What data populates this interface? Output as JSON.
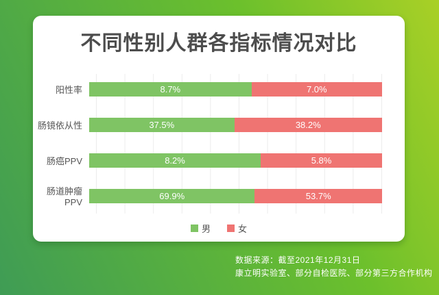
{
  "chart_data": {
    "type": "bar",
    "subtype": "horizontal-stacked-percent",
    "title": "不同性别人群各指标情况对比",
    "categories": [
      "阳性率",
      "肠镜依从性",
      "肠癌PPV",
      "肠道肿瘤PPV"
    ],
    "series": [
      {
        "name": "男",
        "color": "#7fc464",
        "values": [
          8.7,
          37.5,
          8.2,
          69.9
        ],
        "labels": [
          "8.7%",
          "37.5%",
          "8.2%",
          "69.9%"
        ]
      },
      {
        "name": "女",
        "color": "#ef7472",
        "values": [
          7.0,
          38.2,
          5.8,
          53.7
        ],
        "labels": [
          "7.0%",
          "38.2%",
          "5.8%",
          "53.7%"
        ]
      }
    ],
    "legend_position": "bottom",
    "grid": "vertical-lines-every-10-percent",
    "bar_label_color": "#ffffff"
  },
  "source": {
    "line1": "数据来源：截至2021年12月31日",
    "line2": "康立明实验室、部分自检医院、部分第三方合作机构"
  },
  "colors": {
    "background_gradient_from": "#a9d026",
    "background_gradient_to": "#3f9c55",
    "card": "#ffffff",
    "title_text": "#4d4d4d",
    "category_text": "#555555",
    "gridline": "#ececec",
    "male_bar": "#7fc464",
    "female_bar": "#ef7472",
    "source_text": "#ffffff"
  }
}
